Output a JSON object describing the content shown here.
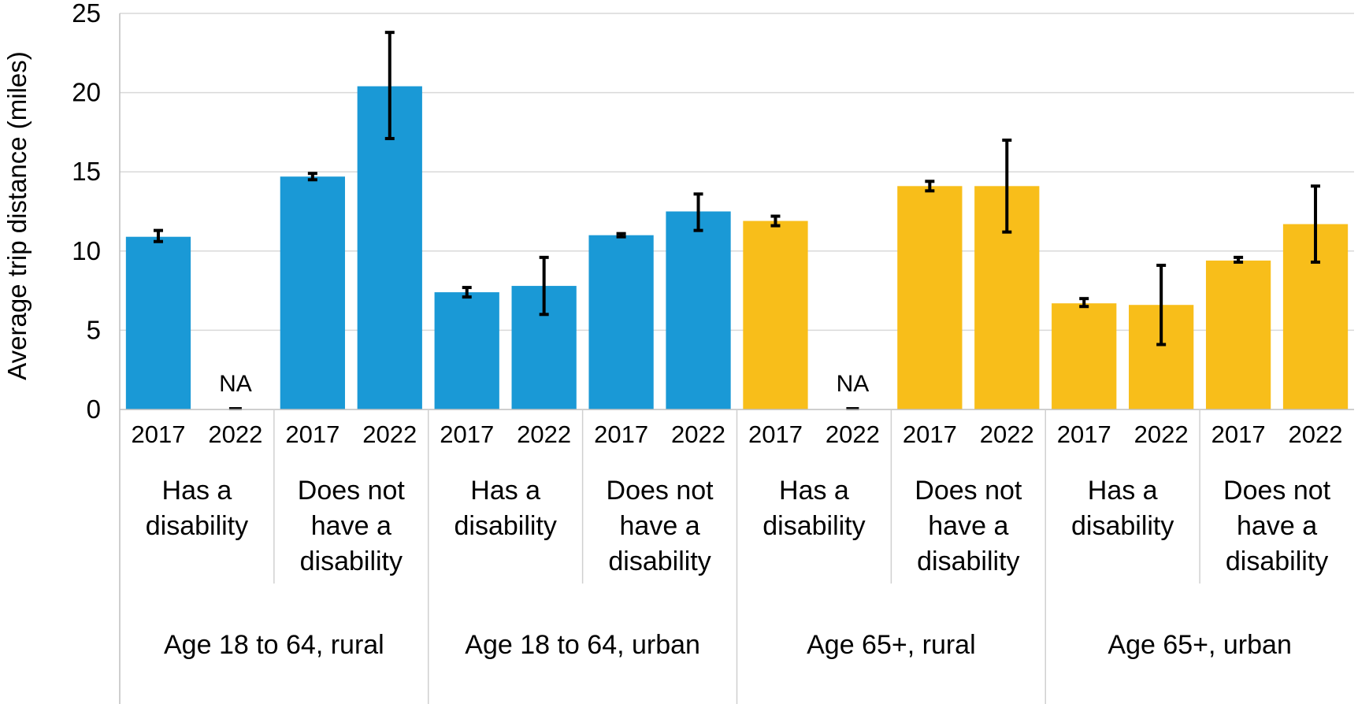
{
  "chart_data": {
    "type": "bar",
    "ylabel": "Average trip distance (miles)",
    "ylim": [
      0,
      25
    ],
    "yticks": [
      0,
      5,
      10,
      15,
      20,
      25
    ],
    "grid": true,
    "na_label": "NA",
    "colors": {
      "age_18_64": "#1a99d6",
      "age_65_plus": "#f8be1a"
    },
    "groups": [
      {
        "label": "Age 18 to 64, rural",
        "color_key": "age_18_64",
        "subgroups": [
          {
            "label_lines": [
              "Has a",
              "disability"
            ],
            "bars": [
              {
                "year": "2017",
                "value": 10.9,
                "err_low": 10.6,
                "err_high": 11.3
              },
              {
                "year": "2022",
                "value": null
              }
            ]
          },
          {
            "label_lines": [
              "Does not",
              "have a",
              "disability"
            ],
            "bars": [
              {
                "year": "2017",
                "value": 14.7,
                "err_low": 14.5,
                "err_high": 14.9
              },
              {
                "year": "2022",
                "value": 20.4,
                "err_low": 17.1,
                "err_high": 23.8
              }
            ]
          }
        ]
      },
      {
        "label": "Age 18 to 64, urban",
        "color_key": "age_18_64",
        "subgroups": [
          {
            "label_lines": [
              "Has a",
              "disability"
            ],
            "bars": [
              {
                "year": "2017",
                "value": 7.4,
                "err_low": 7.1,
                "err_high": 7.7
              },
              {
                "year": "2022",
                "value": 7.8,
                "err_low": 6.0,
                "err_high": 9.6
              }
            ]
          },
          {
            "label_lines": [
              "Does not",
              "have a",
              "disability"
            ],
            "bars": [
              {
                "year": "2017",
                "value": 11.0,
                "err_low": 10.9,
                "err_high": 11.1
              },
              {
                "year": "2022",
                "value": 12.5,
                "err_low": 11.3,
                "err_high": 13.6
              }
            ]
          }
        ]
      },
      {
        "label": "Age 65+, rural",
        "color_key": "age_65_plus",
        "subgroups": [
          {
            "label_lines": [
              "Has a",
              "disability"
            ],
            "bars": [
              {
                "year": "2017",
                "value": 11.9,
                "err_low": 11.6,
                "err_high": 12.2
              },
              {
                "year": "2022",
                "value": null
              }
            ]
          },
          {
            "label_lines": [
              "Does not",
              "have a",
              "disability"
            ],
            "bars": [
              {
                "year": "2017",
                "value": 14.1,
                "err_low": 13.8,
                "err_high": 14.4
              },
              {
                "year": "2022",
                "value": 14.1,
                "err_low": 11.2,
                "err_high": 17.0
              }
            ]
          }
        ]
      },
      {
        "label": "Age 65+, urban",
        "color_key": "age_65_plus",
        "subgroups": [
          {
            "label_lines": [
              "Has a",
              "disability"
            ],
            "bars": [
              {
                "year": "2017",
                "value": 6.7,
                "err_low": 6.5,
                "err_high": 7.0
              },
              {
                "year": "2022",
                "value": 6.6,
                "err_low": 4.1,
                "err_high": 9.1
              }
            ]
          },
          {
            "label_lines": [
              "Does not",
              "have a",
              "disability"
            ],
            "bars": [
              {
                "year": "2017",
                "value": 9.4,
                "err_low": 9.3,
                "err_high": 9.6
              },
              {
                "year": "2022",
                "value": 11.7,
                "err_low": 9.3,
                "err_high": 14.1
              }
            ]
          }
        ]
      }
    ]
  }
}
